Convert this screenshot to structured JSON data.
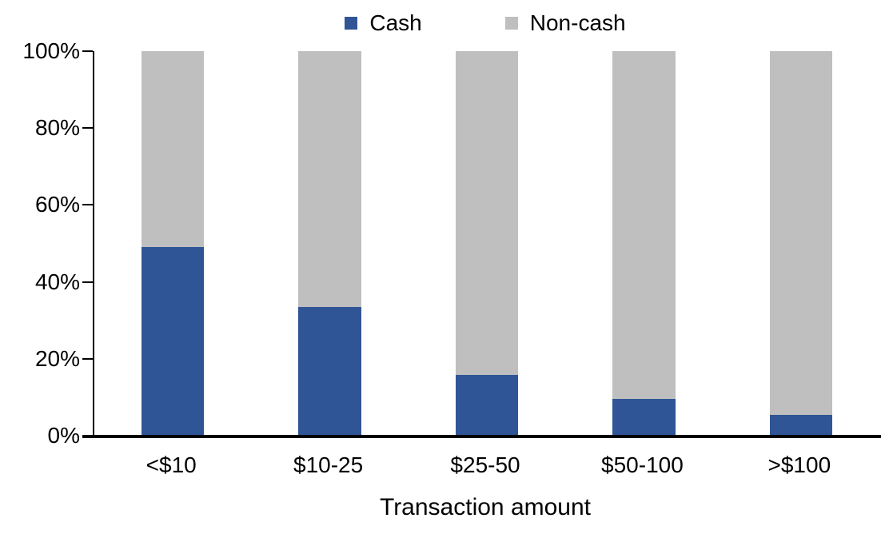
{
  "chart_data": {
    "type": "bar",
    "subtype": "stacked-100-percent",
    "title": "",
    "xlabel": "Transaction amount",
    "ylabel": "",
    "categories": [
      "<$10",
      "$10-25",
      "$25-50",
      "$50-100",
      ">$100"
    ],
    "series": [
      {
        "name": "Cash",
        "color": "#2F5597",
        "values": [
          49,
          33.5,
          15.7,
          9.6,
          5.5
        ]
      },
      {
        "name": "Non-cash",
        "color": "#BFBFBF",
        "values": [
          51,
          66.5,
          84.3,
          90.4,
          94.5
        ]
      }
    ],
    "ylim": [
      0,
      100
    ],
    "ytick_labels": [
      "0%",
      "20%",
      "40%",
      "60%",
      "80%",
      "100%"
    ],
    "ytick_values": [
      0,
      20,
      40,
      60,
      80,
      100
    ],
    "grid": false,
    "legend_position": "top"
  },
  "colors": {
    "axis": "#000000",
    "text": "#000000",
    "background": "#FFFFFF"
  }
}
